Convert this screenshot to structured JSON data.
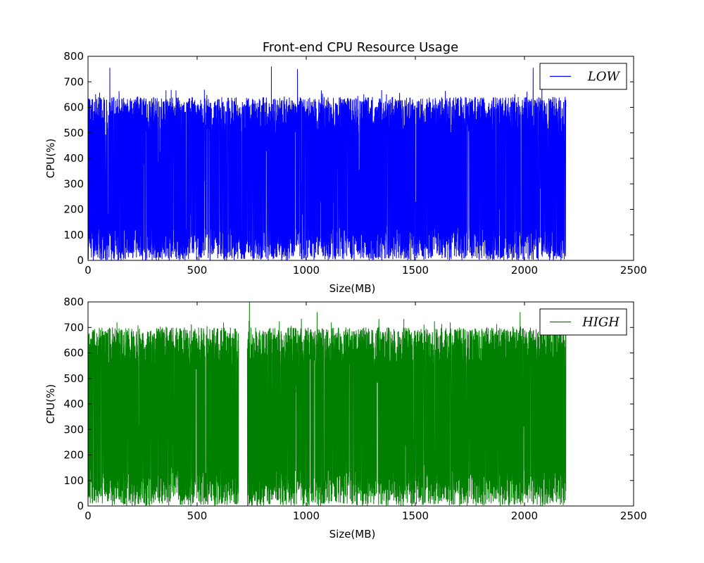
{
  "chart_data": {
    "title": "Front-end CPU Resource Usage",
    "subplots": [
      {
        "type": "line",
        "name": "LOW",
        "color": "#0000ff",
        "xlabel": "Size(MB)",
        "ylabel": "CPU(%)",
        "xlim": [
          0,
          2500
        ],
        "ylim": [
          0,
          800
        ],
        "xticks": [
          0,
          500,
          1000,
          1500,
          2000,
          2500
        ],
        "yticks": [
          0,
          100,
          200,
          300,
          400,
          500,
          600,
          700,
          800
        ],
        "legend_position": "top-right",
        "x_extent": [
          0,
          2190
        ],
        "typical_range": [
          0,
          640
        ],
        "max_value": 760,
        "peaks": [
          [
            100,
            755
          ],
          [
            840,
            760
          ],
          [
            960,
            750
          ],
          [
            2040,
            755
          ],
          [
            2080,
            740
          ]
        ]
      },
      {
        "type": "line",
        "name": "HIGH",
        "color": "#008000",
        "xlabel": "Size(MB)",
        "ylabel": "CPU(%)",
        "xlim": [
          0,
          2500
        ],
        "ylim": [
          0,
          800
        ],
        "xticks": [
          0,
          500,
          1000,
          1500,
          2000,
          2500
        ],
        "yticks": [
          0,
          100,
          200,
          300,
          400,
          500,
          600,
          700,
          800
        ],
        "legend_position": "top-right",
        "x_extent": [
          0,
          2190
        ],
        "typical_range": [
          0,
          700
        ],
        "max_value": 800,
        "gap": [
          690,
          730
        ],
        "peaks": [
          [
            740,
            800
          ],
          [
            1050,
            760
          ],
          [
            1980,
            760
          ]
        ]
      }
    ]
  }
}
